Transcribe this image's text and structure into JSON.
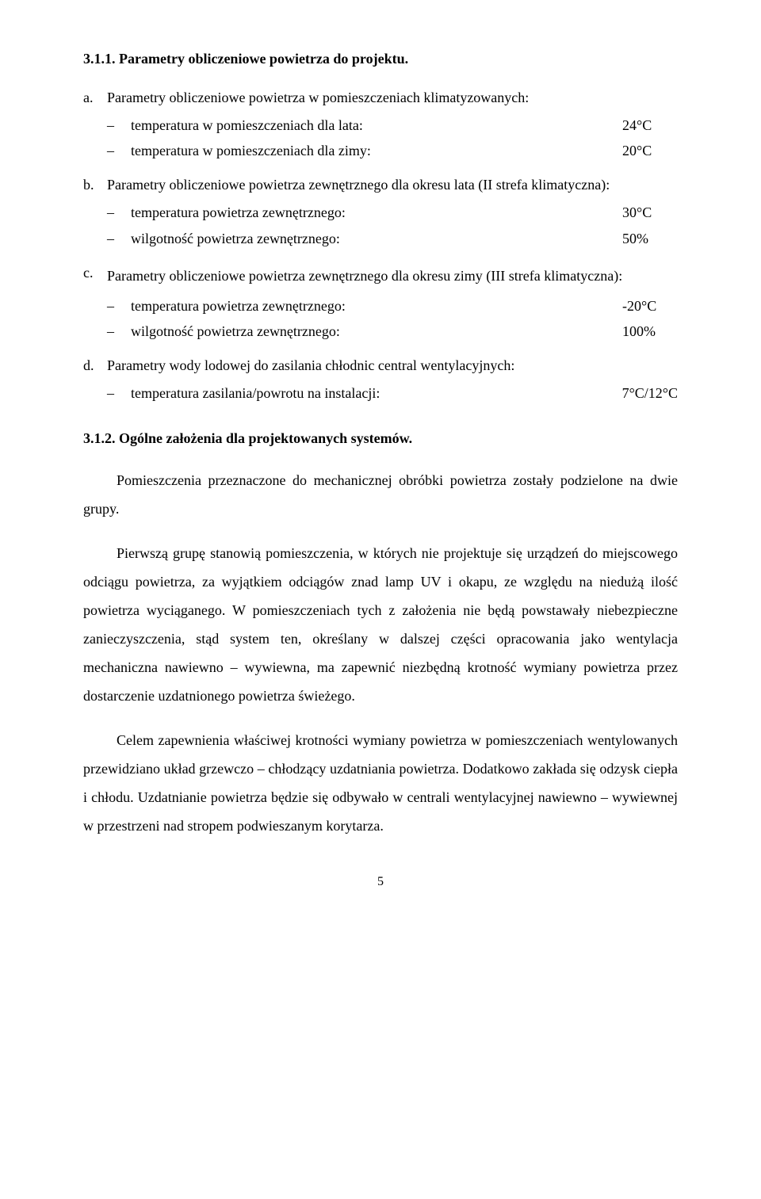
{
  "heading1": "3.1.1. Parametry obliczeniowe powietrza do projektu.",
  "items": {
    "a": {
      "marker": "a.",
      "intro": "Parametry obliczeniowe powietrza w pomieszczeniach klimatyzowanych:",
      "rows": [
        {
          "label": "temperatura w pomieszczeniach dla lata:",
          "value": "24°C"
        },
        {
          "label": "temperatura w pomieszczeniach dla zimy:",
          "value": "20°C"
        }
      ]
    },
    "b": {
      "marker": "b.",
      "intro": "Parametry obliczeniowe powietrza zewnętrznego dla okresu lata (II strefa klimatyczna):",
      "rows": [
        {
          "label": "temperatura powietrza zewnętrznego:",
          "value": "30°C"
        },
        {
          "label": "wilgotność powietrza zewnętrznego:",
          "value": "50%"
        }
      ]
    },
    "c": {
      "marker": "c.",
      "intro": "Parametry obliczeniowe powietrza zewnętrznego dla okresu zimy (III strefa klimatyczna):",
      "rows": [
        {
          "label": "temperatura powietrza zewnętrznego:",
          "value": "-20°C"
        },
        {
          "label": "wilgotność powietrza zewnętrznego:",
          "value": "100%"
        }
      ]
    },
    "d": {
      "marker": "d.",
      "intro": "Parametry wody lodowej do zasilania chłodnic central wentylacyjnych:",
      "rows": [
        {
          "label": "temperatura zasilania/powrotu na instalacji:",
          "value": "7°C/12°C"
        }
      ]
    }
  },
  "heading2": "3.1.2. Ogólne założenia dla projektowanych systemów.",
  "paragraphs": [
    "Pomieszczenia przeznaczone do mechanicznej obróbki powietrza zostały podzielone na dwie grupy.",
    "Pierwszą grupę stanowią pomieszczenia, w których nie projektuje się urządzeń do miejscowego odciągu powietrza, za wyjątkiem odciągów znad lamp UV i okapu, ze względu na niedużą ilość powietrza wyciąganego. W pomieszczeniach tych z założenia nie będą powstawały niebezpieczne zanieczyszczenia, stąd system ten, określany w dalszej części opracowania jako wentylacja mechaniczna nawiewno – wywiewna, ma zapewnić niezbędną krotność wymiany powietrza przez dostarczenie uzdatnionego powietrza świeżego.",
    "Celem zapewnienia właściwej krotności wymiany powietrza w pomieszczeniach wentylowanych przewidziano układ grzewczo – chłodzący uzdatniania powietrza. Dodatkowo zakłada się odzysk ciepła i chłodu. Uzdatnianie powietrza będzie się odbywało w centrali wentylacyjnej nawiewno – wywiewnej w przestrzeni nad stropem podwieszanym korytarza."
  ],
  "pageNumber": "5"
}
